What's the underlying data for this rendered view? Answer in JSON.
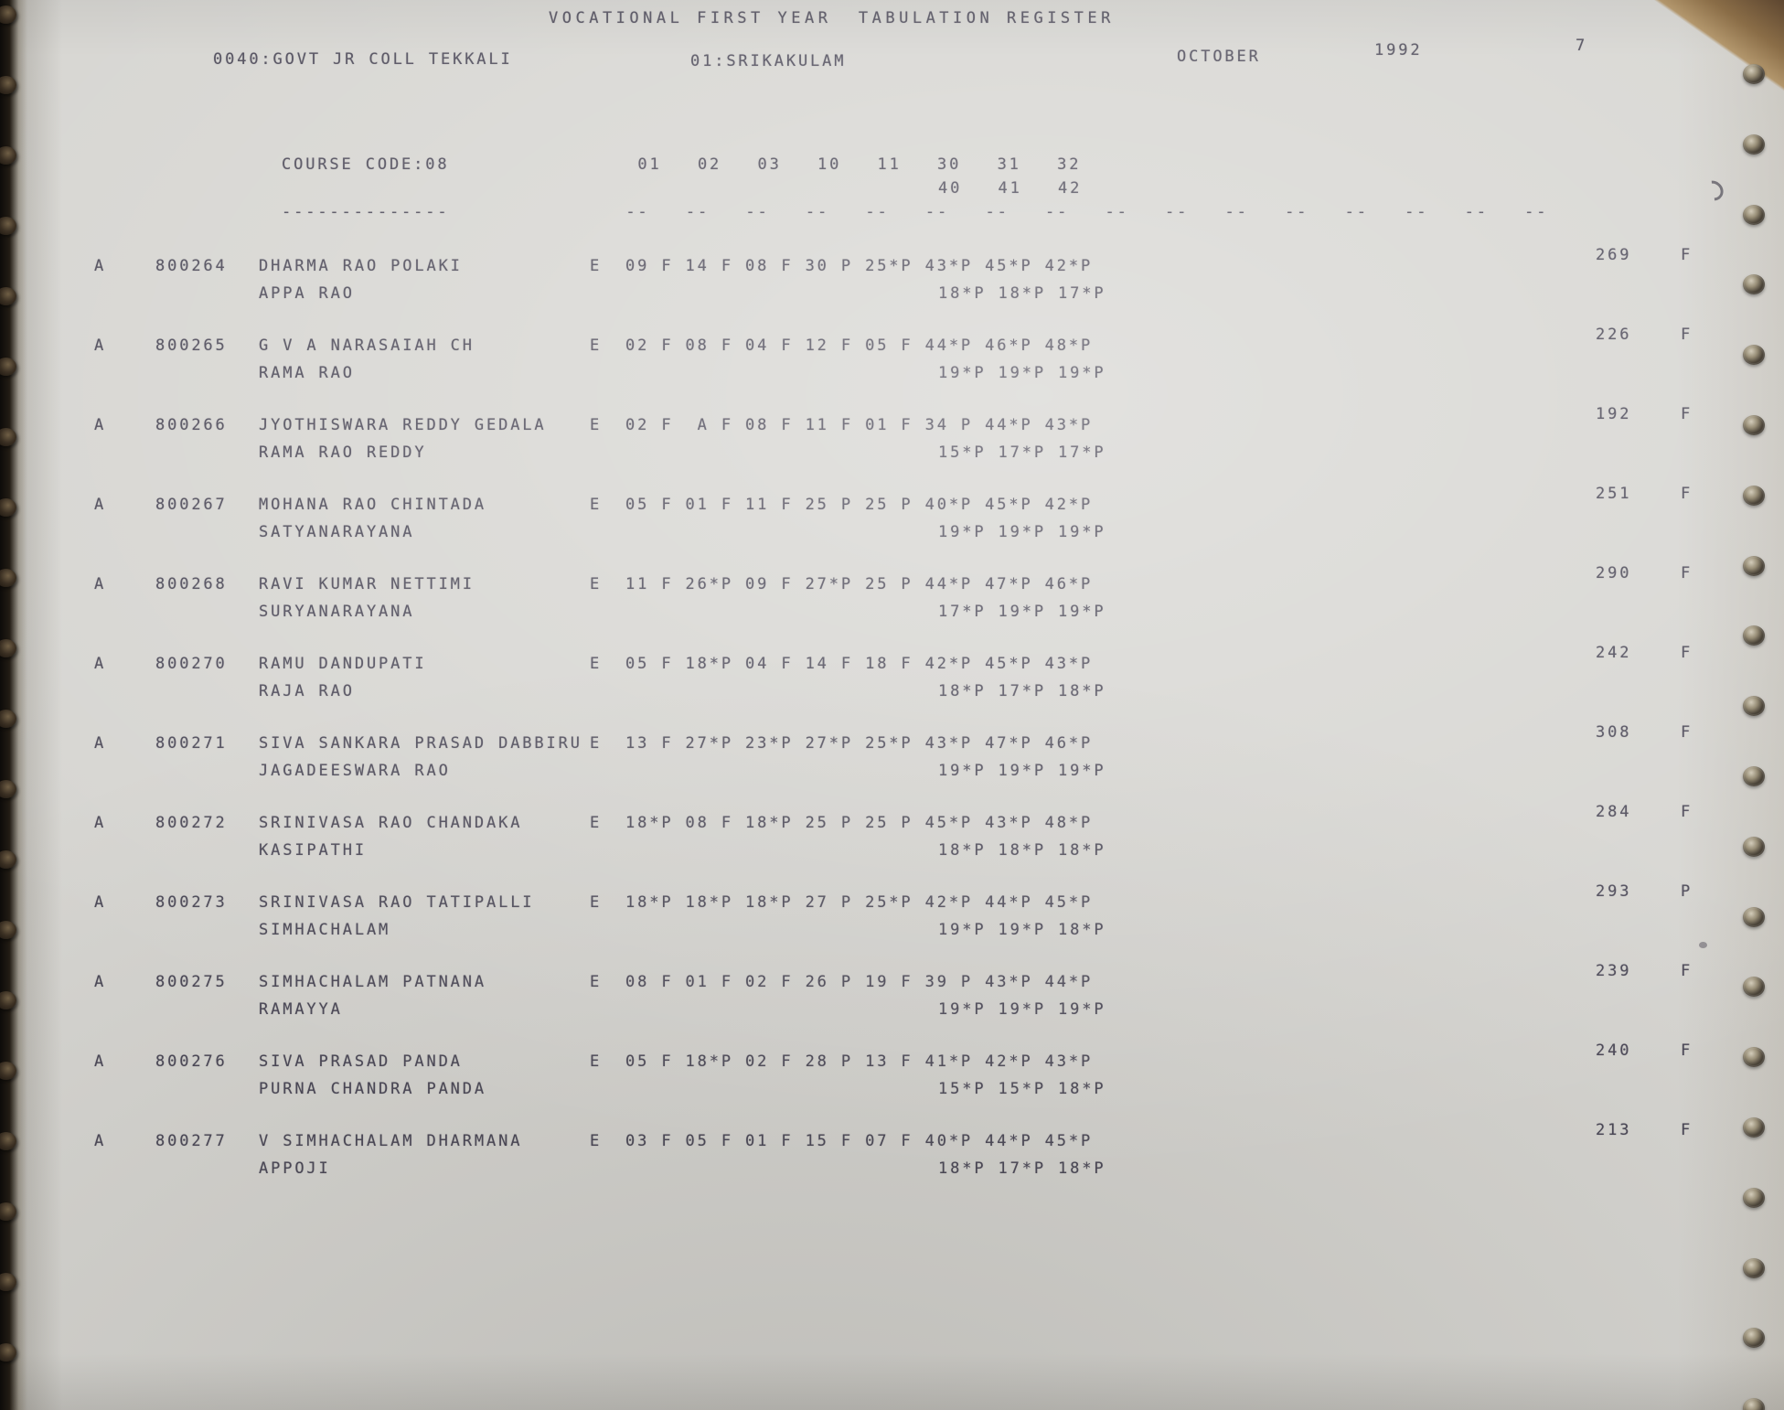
{
  "header": {
    "title": "VOCATIONAL FIRST YEAR  TABULATION REGISTER",
    "college": "0040:GOVT JR COLL TEKKALI",
    "district": "01:SRIKAKULAM",
    "month": "OCTOBER",
    "year": "1992",
    "page_number": "7"
  },
  "course": {
    "label": "COURSE CODE:08",
    "code": "08",
    "underline": "--------------"
  },
  "columns": {
    "subject_codes": [
      "01",
      "02",
      "03",
      "10",
      "11",
      "30",
      "31",
      "32",
      "40",
      "41",
      "42"
    ],
    "codes_line1": "    01   02   03   10   11   30   31   32",
    "codes_line2": "40   41   42",
    "dashes": "   --   --   --   --   --   --   --   --   --   --   --   --   --   --   --   --"
  },
  "rows": [
    {
      "marker": "A",
      "roll": "800264",
      "name": "DHARMA RAO POLAKI",
      "parent": "APPA RAO",
      "medium": "E",
      "marks_line1": "09 F 14 F 08 F 30 P 25*P 43*P 45*P 42*P",
      "marks_line2": "18*P 18*P 17*P",
      "total": "269",
      "result": "F"
    },
    {
      "marker": "A",
      "roll": "800265",
      "name": "G V A NARASAIAH CH",
      "parent": "RAMA RAO",
      "medium": "E",
      "marks_line1": "02 F 08 F 04 F 12 F 05 F 44*P 46*P 48*P",
      "marks_line2": "19*P 19*P 19*P",
      "total": "226",
      "result": "F"
    },
    {
      "marker": "A",
      "roll": "800266",
      "name": "JYOTHISWARA REDDY GEDALA",
      "parent": "RAMA RAO REDDY",
      "medium": "E",
      "marks_line1": "02 F  A F 08 F 11 F 01 F 34 P 44*P 43*P",
      "marks_line2": "15*P 17*P 17*P",
      "total": "192",
      "result": "F"
    },
    {
      "marker": "A",
      "roll": "800267",
      "name": "MOHANA RAO CHINTADA",
      "parent": "SATYANARAYANA",
      "medium": "E",
      "marks_line1": "05 F 01 F 11 F 25 P 25 P 40*P 45*P 42*P",
      "marks_line2": "19*P 19*P 19*P",
      "total": "251",
      "result": "F"
    },
    {
      "marker": "A",
      "roll": "800268",
      "name": "RAVI KUMAR NETTIMI",
      "parent": "SURYANARAYANA",
      "medium": "E",
      "marks_line1": "11 F 26*P 09 F 27*P 25 P 44*P 47*P 46*P",
      "marks_line2": "17*P 19*P 19*P",
      "total": "290",
      "result": "F"
    },
    {
      "marker": "A",
      "roll": "800270",
      "name": "RAMU DANDUPATI",
      "parent": "RAJA RAO",
      "medium": "E",
      "marks_line1": "05 F 18*P 04 F 14 F 18 F 42*P 45*P 43*P",
      "marks_line2": "18*P 17*P 18*P",
      "total": "242",
      "result": "F"
    },
    {
      "marker": "A",
      "roll": "800271",
      "name": "SIVA SANKARA PRASAD DABBIRU",
      "parent": "JAGADEESWARA RAO",
      "medium": "E",
      "marks_line1": "13 F 27*P 23*P 27*P 25*P 43*P 47*P 46*P",
      "marks_line2": "19*P 19*P 19*P",
      "total": "308",
      "result": "F"
    },
    {
      "marker": "A",
      "roll": "800272",
      "name": "SRINIVASA RAO CHANDAKA",
      "parent": "KASIPATHI",
      "medium": "E",
      "marks_line1": "18*P 08 F 18*P 25 P 25 P 45*P 43*P 48*P",
      "marks_line2": "18*P 18*P 18*P",
      "total": "284",
      "result": "F"
    },
    {
      "marker": "A",
      "roll": "800273",
      "name": "SRINIVASA RAO TATIPALLI",
      "parent": "SIMHACHALAM",
      "medium": "E",
      "marks_line1": "18*P 18*P 18*P 27 P 25*P 42*P 44*P 45*P",
      "marks_line2": "19*P 19*P 18*P",
      "total": "293",
      "result": "P"
    },
    {
      "marker": "A",
      "roll": "800275",
      "name": "SIMHACHALAM PATNANA",
      "parent": "RAMAYYA",
      "medium": "E",
      "marks_line1": "08 F 01 F 02 F 26 P 19 F 39 P 43*P 44*P",
      "marks_line2": "19*P 19*P 19*P",
      "total": "239",
      "result": "F"
    },
    {
      "marker": "A",
      "roll": "800276",
      "name": "SIVA PRASAD PANDA",
      "parent": "PURNA CHANDRA PANDA",
      "medium": "E",
      "marks_line1": "05 F 18*P 02 F 28 P 13 F 41*P 42*P 43*P",
      "marks_line2": "15*P 15*P 18*P",
      "total": "240",
      "result": "F"
    },
    {
      "marker": "A",
      "roll": "800277",
      "name": "V SIMHACHALAM DHARMANA",
      "parent": "APPOJI",
      "medium": "E",
      "marks_line1": "03 F 05 F 01 F 15 F 07 F 40*P 44*P 45*P",
      "marks_line2": "18*P 17*P 18*P",
      "total": "213",
      "result": "F"
    }
  ]
}
